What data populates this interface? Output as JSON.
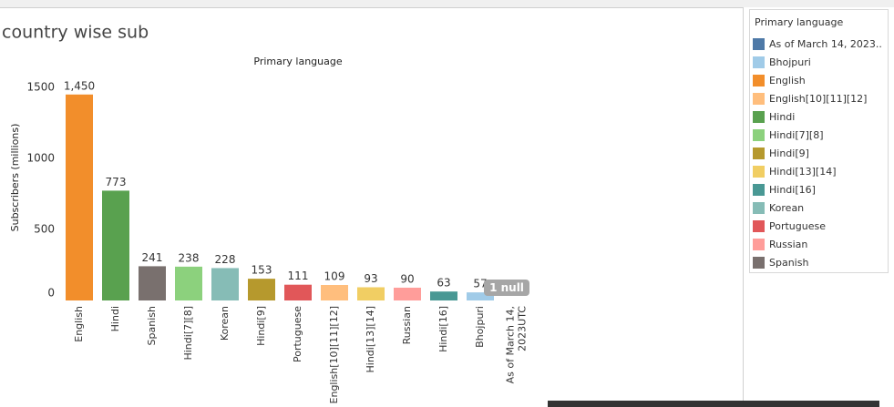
{
  "chart_data": {
    "type": "bar",
    "title": "country wise sub",
    "x_header": "Primary language",
    "y_label": "Subscribers (millions)",
    "categories": [
      "English",
      "Hindi",
      "Spanish",
      "Hindi[7][8]",
      "Korean",
      "Hindi[9]",
      "Portuguese",
      "English[10][11][12]",
      "Hindi[13][14]",
      "Russian",
      "Hindi[16]",
      "Bhojpuri",
      "As of March 14, 2023UTC"
    ],
    "values": [
      1450,
      773,
      241,
      238,
      228,
      153,
      111,
      109,
      93,
      90,
      63,
      57,
      null
    ],
    "value_labels": [
      "1,450",
      "773",
      "241",
      "238",
      "228",
      "153",
      "111",
      "109",
      "93",
      "90",
      "63",
      "57",
      null
    ],
    "colors": [
      "#f28e2b",
      "#59a14f",
      "#79706e",
      "#8cd17d",
      "#86bcb6",
      "#b6992d",
      "#e15759",
      "#ffbe7d",
      "#f1ce63",
      "#ff9d9a",
      "#499894",
      "#a0cbe8",
      "#4e79a7"
    ],
    "null_note": "1 null",
    "ylim": [
      0,
      1500
    ],
    "yticks": [
      0,
      500,
      1000,
      1500
    ],
    "grid": false,
    "legend": {
      "title": "Primary language",
      "items": [
        {
          "name": "As of March 14, 2023..",
          "color": "#4e79a7"
        },
        {
          "name": "Bhojpuri",
          "color": "#a0cbe8"
        },
        {
          "name": "English",
          "color": "#f28e2b"
        },
        {
          "name": "English[10][11][12]",
          "color": "#ffbe7d"
        },
        {
          "name": "Hindi",
          "color": "#59a14f"
        },
        {
          "name": "Hindi[7][8]",
          "color": "#8cd17d"
        },
        {
          "name": "Hindi[9]",
          "color": "#b6992d"
        },
        {
          "name": "Hindi[13][14]",
          "color": "#f1ce63"
        },
        {
          "name": "Hindi[16]",
          "color": "#499894"
        },
        {
          "name": "Korean",
          "color": "#86bcb6"
        },
        {
          "name": "Portuguese",
          "color": "#e15759"
        },
        {
          "name": "Russian",
          "color": "#ff9d9a"
        },
        {
          "name": "Spanish",
          "color": "#79706e"
        }
      ]
    }
  }
}
